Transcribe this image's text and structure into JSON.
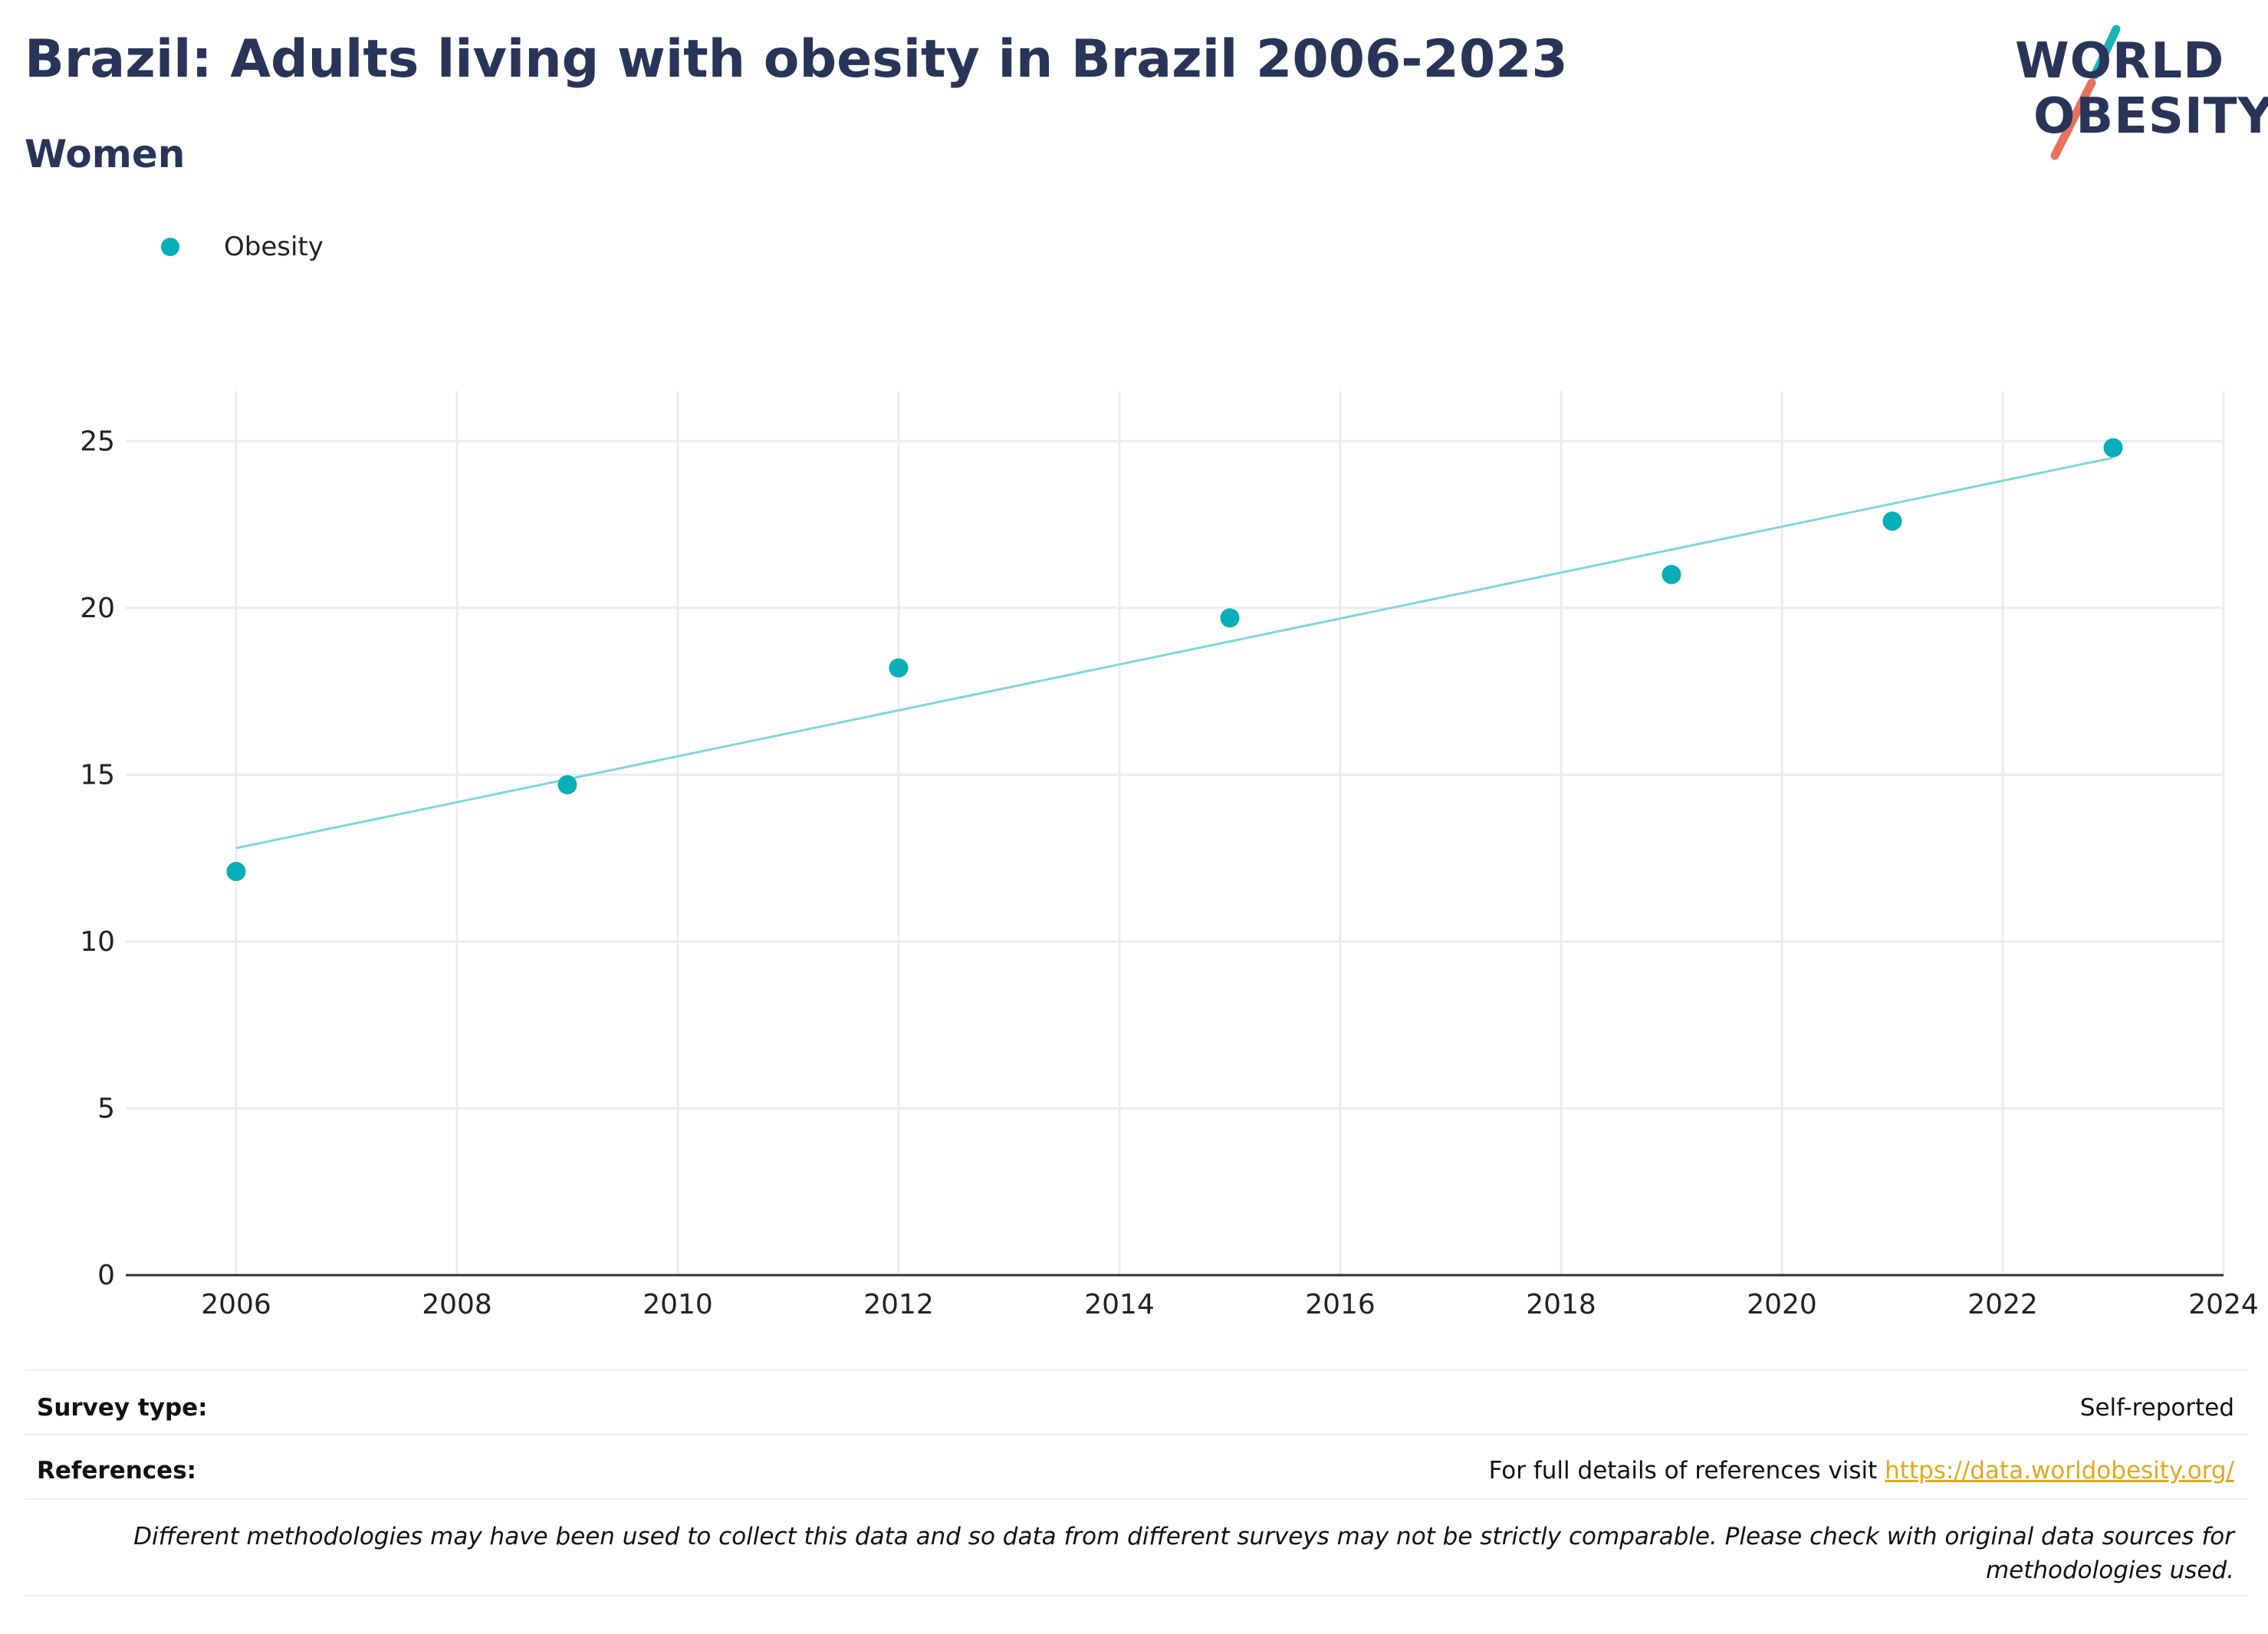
{
  "title": "Brazil: Adults living with obesity in Brazil 2006-2023",
  "subtitle": "Women",
  "logo": {
    "line1": "WORLD",
    "line2": "OBESITY",
    "accent_teal": "#1bb3b8",
    "accent_coral": "#e8715e"
  },
  "legend": [
    {
      "label": "Obesity",
      "color": "#08aeb8"
    }
  ],
  "chart_data": {
    "type": "scatter",
    "series": [
      {
        "name": "Obesity",
        "color": "#08aeb8",
        "x": [
          2006,
          2009,
          2012,
          2015,
          2019,
          2021,
          2023
        ],
        "y": [
          12.1,
          14.7,
          18.2,
          19.7,
          21.0,
          22.6,
          24.8
        ]
      }
    ],
    "trendline": {
      "color": "#7fd6dc",
      "x": [
        2006,
        2023
      ],
      "y": [
        12.8,
        24.5
      ]
    },
    "xlim": [
      2005,
      2024
    ],
    "ylim": [
      0,
      26.5
    ],
    "xticks": [
      2006,
      2008,
      2010,
      2012,
      2014,
      2016,
      2018,
      2020,
      2022,
      2024
    ],
    "yticks": [
      0,
      5,
      10,
      15,
      20,
      25
    ],
    "grid": true,
    "legend_position": "top-left",
    "title": "Brazil: Adults living with obesity in Brazil 2006-2023",
    "xlabel": "",
    "ylabel": ""
  },
  "footer": {
    "survey_label": "Survey type:",
    "survey_value": "Self-reported",
    "references_label": "References:",
    "references_text": "For full details of references visit",
    "references_link": "https://data.worldobesity.org/",
    "note": "Different methodologies may have been used to collect this data and so data from different surveys may not be strictly comparable. Please check with original data sources for methodologies used."
  }
}
